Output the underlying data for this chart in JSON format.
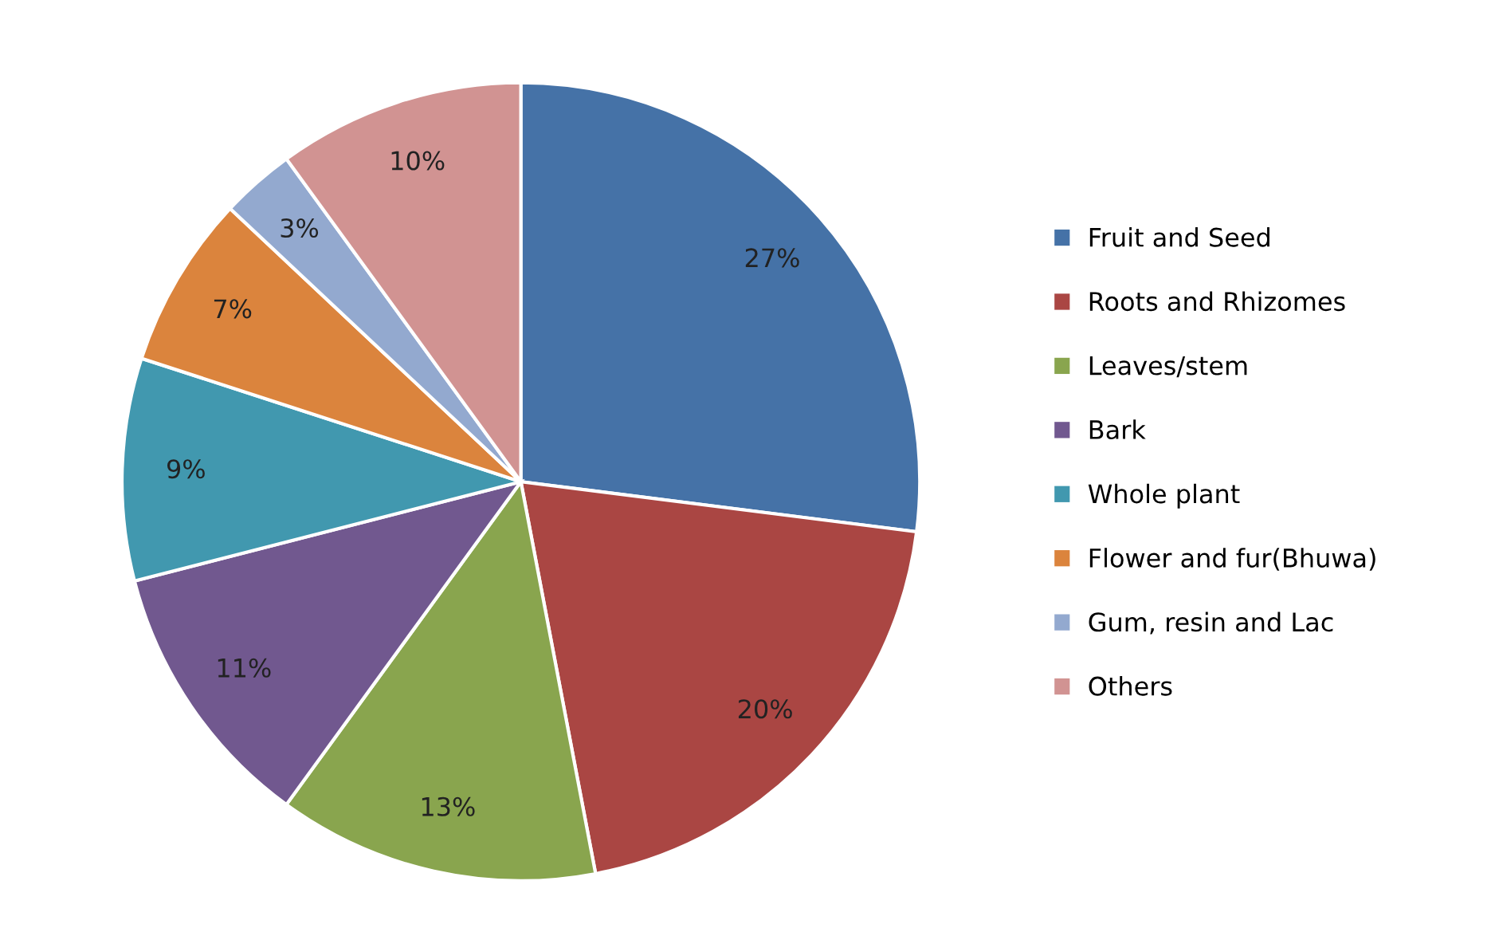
{
  "chart_data": {
    "type": "pie",
    "categories": [
      "Fruit and Seed",
      "Roots and Rhizomes",
      "Leaves/stem",
      "Bark",
      "Whole plant",
      "Flower and fur(Bhuwa)",
      "Gum, resin and Lac",
      "Others"
    ],
    "values": [
      27,
      20,
      13,
      11,
      9,
      7,
      3,
      10
    ],
    "colors": [
      "#4572a7",
      "#aa4643",
      "#89a54e",
      "#71588f",
      "#4198af",
      "#db843d",
      "#93a9cf",
      "#d19392"
    ],
    "value_labels": [
      "27%",
      "20%",
      "13%",
      "11%",
      "9%",
      "7%",
      "3%",
      "10%"
    ],
    "legend": "right"
  }
}
